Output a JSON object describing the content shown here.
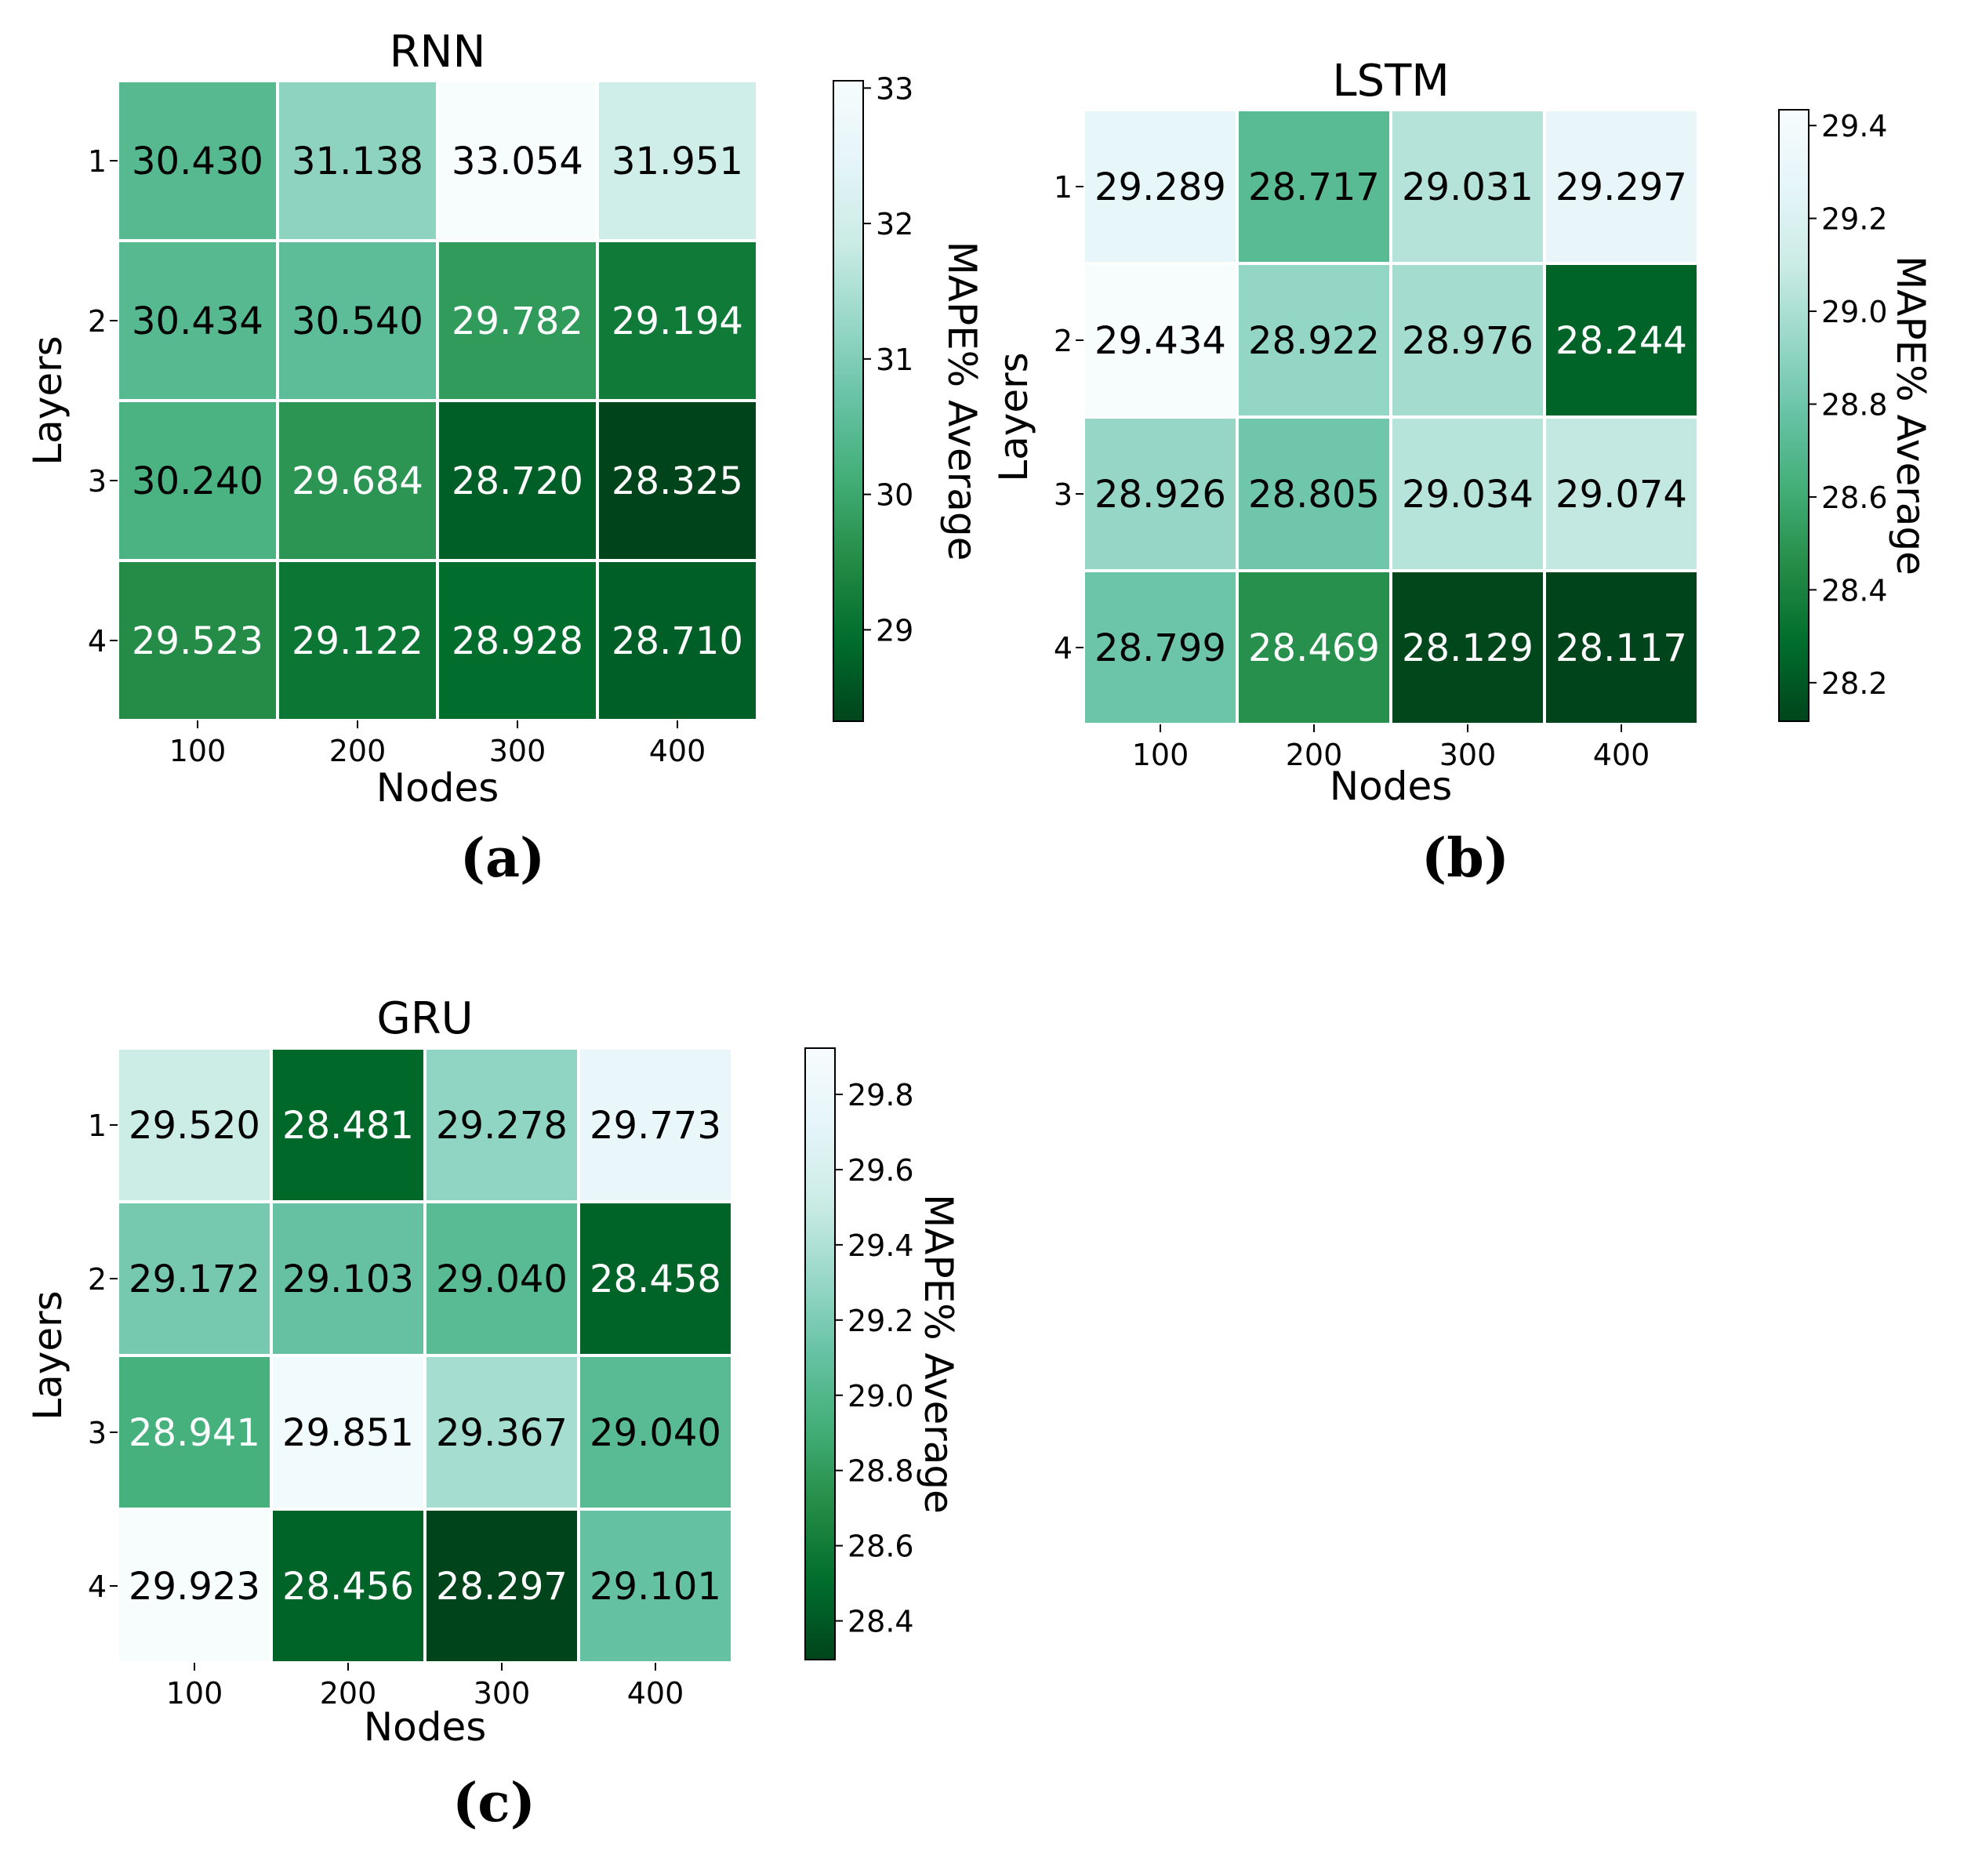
{
  "chart_data": [
    {
      "type": "heatmap",
      "title": "RNN",
      "xlabel": "Nodes",
      "ylabel": "Layers",
      "x_categories": [
        "100",
        "200",
        "300",
        "400"
      ],
      "y_categories": [
        "1",
        "2",
        "3",
        "4"
      ],
      "values": [
        [
          30.43,
          31.138,
          33.054,
          31.951
        ],
        [
          30.434,
          30.54,
          29.782,
          29.194
        ],
        [
          30.24,
          29.684,
          28.72,
          28.325
        ],
        [
          29.523,
          29.122,
          28.928,
          28.71
        ]
      ],
      "value_labels": [
        [
          "30.430",
          "31.138",
          "33.054",
          "31.951"
        ],
        [
          "30.434",
          "30.540",
          "29.782",
          "29.194"
        ],
        [
          "30.240",
          "29.684",
          "28.720",
          "28.325"
        ],
        [
          "29.523",
          "29.122",
          "28.928",
          "28.710"
        ]
      ],
      "colorbar": {
        "label": "MAPE% Average",
        "range": [
          28.325,
          33.054
        ],
        "ticks": [
          "29",
          "30",
          "31",
          "32",
          "33"
        ]
      },
      "panel_label": "(a)"
    },
    {
      "type": "heatmap",
      "title": "LSTM",
      "xlabel": "Nodes",
      "ylabel": "Layers",
      "x_categories": [
        "100",
        "200",
        "300",
        "400"
      ],
      "y_categories": [
        "1",
        "2",
        "3",
        "4"
      ],
      "values": [
        [
          29.289,
          28.717,
          29.031,
          29.297
        ],
        [
          29.434,
          28.922,
          28.976,
          28.244
        ],
        [
          28.926,
          28.805,
          29.034,
          29.074
        ],
        [
          28.799,
          28.469,
          28.129,
          28.117
        ]
      ],
      "value_labels": [
        [
          "29.289",
          "28.717",
          "29.031",
          "29.297"
        ],
        [
          "29.434",
          "28.922",
          "28.976",
          "28.244"
        ],
        [
          "28.926",
          "28.805",
          "29.034",
          "29.074"
        ],
        [
          "28.799",
          "28.469",
          "28.129",
          "28.117"
        ]
      ],
      "colorbar": {
        "label": "MAPE% Average",
        "range": [
          28.117,
          29.434
        ],
        "ticks": [
          "28.2",
          "28.4",
          "28.6",
          "28.8",
          "29.0",
          "29.2",
          "29.4"
        ]
      },
      "panel_label": "(b)"
    },
    {
      "type": "heatmap",
      "title": "GRU",
      "xlabel": "Nodes",
      "ylabel": "Layers",
      "x_categories": [
        "100",
        "200",
        "300",
        "400"
      ],
      "y_categories": [
        "1",
        "2",
        "3",
        "4"
      ],
      "values": [
        [
          29.52,
          28.481,
          29.278,
          29.773
        ],
        [
          29.172,
          29.103,
          29.04,
          28.458
        ],
        [
          28.941,
          29.851,
          29.367,
          29.04
        ],
        [
          29.923,
          28.456,
          28.297,
          29.101
        ]
      ],
      "value_labels": [
        [
          "29.520",
          "28.481",
          "29.278",
          "29.773"
        ],
        [
          "29.172",
          "29.103",
          "29.040",
          "28.458"
        ],
        [
          "28.941",
          "29.851",
          "29.367",
          "29.040"
        ],
        [
          "29.923",
          "28.456",
          "28.297",
          "29.101"
        ]
      ],
      "colorbar": {
        "label": "MAPE% Average",
        "range": [
          28.297,
          29.923
        ],
        "ticks": [
          "28.4",
          "28.6",
          "28.8",
          "29.0",
          "29.2",
          "29.4",
          "29.6",
          "29.8"
        ]
      },
      "panel_label": "(c)"
    }
  ],
  "colormap": [
    "#00441b",
    "#006d2c",
    "#238b45",
    "#41ae76",
    "#66c2a4",
    "#99d8c9",
    "#ccece6",
    "#e5f5f9",
    "#f7fcfd"
  ]
}
